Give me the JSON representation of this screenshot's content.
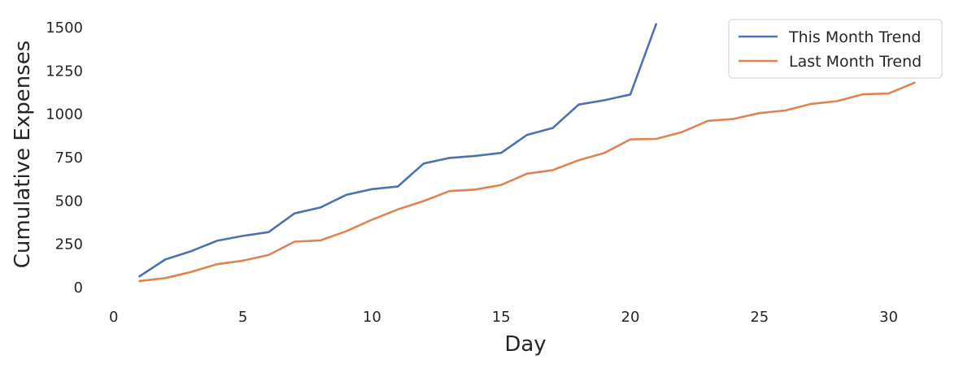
{
  "chart_data": {
    "type": "line",
    "xlabel": "Day",
    "ylabel": "Cumulative Expenses",
    "xlim": [
      -1,
      32.5
    ],
    "ylim": [
      -75,
      1575
    ],
    "xticks": [
      0,
      5,
      10,
      15,
      20,
      25,
      30
    ],
    "yticks": [
      0,
      250,
      500,
      750,
      1000,
      1250,
      1500
    ],
    "grid": false,
    "legend_position": "top-right",
    "series": [
      {
        "name": "This Month Trend",
        "color": "#4c72b0",
        "x": [
          1,
          2,
          3,
          4,
          5,
          6,
          7,
          8,
          9,
          10,
          11,
          12,
          13,
          14,
          15,
          16,
          17,
          18,
          19,
          20,
          21
        ],
        "y": [
          65,
          162,
          210,
          270,
          298,
          320,
          428,
          462,
          535,
          568,
          583,
          716,
          748,
          760,
          777,
          881,
          921,
          1056,
          1081,
          1114,
          1520
        ]
      },
      {
        "name": "Last Month Trend",
        "color": "#dd8452",
        "x": [
          1,
          2,
          3,
          4,
          5,
          6,
          7,
          8,
          9,
          10,
          11,
          12,
          13,
          14,
          15,
          16,
          17,
          18,
          19,
          20,
          21,
          22,
          23,
          24,
          25,
          26,
          27,
          28,
          29,
          30,
          31
        ],
        "y": [
          38,
          55,
          90,
          135,
          155,
          188,
          265,
          272,
          325,
          392,
          451,
          499,
          557,
          566,
          592,
          657,
          678,
          735,
          777,
          855,
          858,
          897,
          962,
          973,
          1007,
          1022,
          1060,
          1076,
          1115,
          1120,
          1182
        ]
      }
    ]
  }
}
